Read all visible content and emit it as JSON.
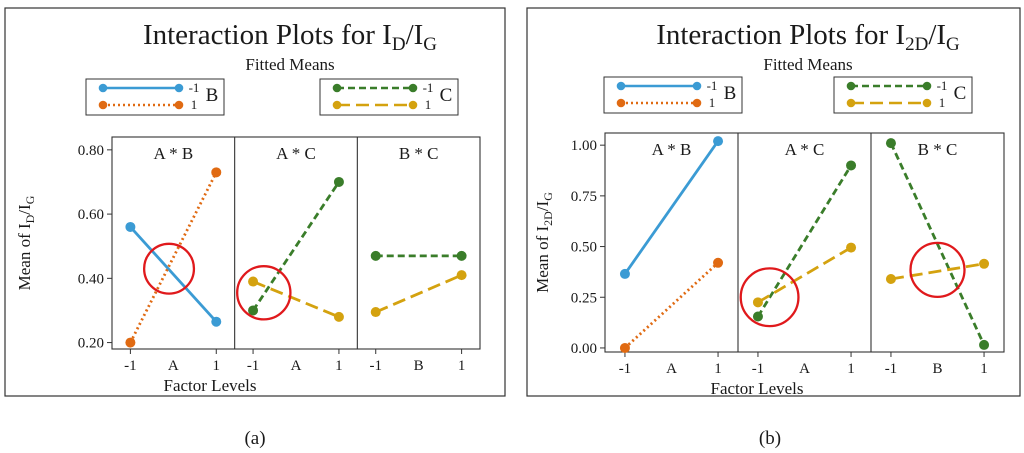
{
  "colors": {
    "blue": "#3b9bd4",
    "orange": "#e06a12",
    "green": "#3a7d2a",
    "gold": "#d4a20f",
    "circle": "#e0191c",
    "frame": "#333333"
  },
  "panel_labels": [
    "(a)",
    "(b)"
  ],
  "chart_data": [
    {
      "type": "line",
      "title_main": "Interaction Plots for I",
      "title_sub1": "D",
      "title_sep": "/I",
      "title_sub2": "G",
      "subtitle": "Fitted Means",
      "legend_left": {
        "levels": [
          "-1",
          "1"
        ],
        "factor": "B"
      },
      "legend_right": {
        "levels": [
          "-1",
          "1"
        ],
        "factor": "C"
      },
      "ylabel_main": "Mean of I",
      "ylabel_sub1": "D",
      "ylabel_sep": "/I",
      "ylabel_sub2": "G",
      "xlabel": "Factor Levels",
      "ylim": [
        0.18,
        0.84
      ],
      "yticks": [
        0.2,
        0.4,
        0.6,
        0.8
      ],
      "ytick_labels": [
        "0.20",
        "0.40",
        "0.60",
        "0.80"
      ],
      "x": [
        -1,
        1
      ],
      "xtick_labels": [
        "-1",
        "1"
      ],
      "subplots": [
        {
          "title": "A * B",
          "factor": "A",
          "series": [
            {
              "name": "-1",
              "color": "blue",
              "dash": "solid",
              "values": [
                0.56,
                0.265
              ]
            },
            {
              "name": "1",
              "color": "orange",
              "dash": "dotted",
              "values": [
                0.2,
                0.73
              ]
            }
          ],
          "circle": {
            "x": -0.1,
            "y": 0.43,
            "r": 0.58
          }
        },
        {
          "title": "A * C",
          "factor": "A",
          "series": [
            {
              "name": "-1",
              "color": "green",
              "dash": "dashed",
              "values": [
                0.3,
                0.7
              ]
            },
            {
              "name": "1",
              "color": "gold",
              "dash": "longdash",
              "values": [
                0.39,
                0.28
              ]
            }
          ],
          "circle": {
            "x": -0.75,
            "y": 0.355,
            "r": 0.62
          }
        },
        {
          "title": "B * C",
          "factor": "B",
          "series": [
            {
              "name": "-1",
              "color": "green",
              "dash": "dashed",
              "values": [
                0.47,
                0.47
              ]
            },
            {
              "name": "1",
              "color": "gold",
              "dash": "longdash",
              "values": [
                0.295,
                0.41
              ]
            }
          ]
        }
      ]
    },
    {
      "type": "line",
      "title_main": "Interaction Plots for I",
      "title_sub1": "2D",
      "title_sep": "/I",
      "title_sub2": "G",
      "subtitle": "Fitted Means",
      "legend_left": {
        "levels": [
          "-1",
          "1"
        ],
        "factor": "B"
      },
      "legend_right": {
        "levels": [
          "-1",
          "1"
        ],
        "factor": "C"
      },
      "ylabel_main": "Mean of I",
      "ylabel_sub1": "2D",
      "ylabel_sep": "/I",
      "ylabel_sub2": "G",
      "xlabel": "Factor Levels",
      "ylim": [
        -0.02,
        1.06
      ],
      "yticks": [
        0.0,
        0.25,
        0.5,
        0.75,
        1.0
      ],
      "ytick_labels": [
        "0.00",
        "0.25",
        "0.50",
        "0.75",
        "1.00"
      ],
      "x": [
        -1,
        1
      ],
      "xtick_labels": [
        "-1",
        "1"
      ],
      "subplots": [
        {
          "title": "A * B",
          "factor": "A",
          "series": [
            {
              "name": "-1",
              "color": "blue",
              "dash": "solid",
              "values": [
                0.365,
                1.02
              ]
            },
            {
              "name": "1",
              "color": "orange",
              "dash": "dotted",
              "values": [
                0.0,
                0.42
              ]
            }
          ]
        },
        {
          "title": "A * C",
          "factor": "A",
          "series": [
            {
              "name": "-1",
              "color": "green",
              "dash": "dashed",
              "values": [
                0.155,
                0.9
              ]
            },
            {
              "name": "1",
              "color": "gold",
              "dash": "longdash",
              "values": [
                0.225,
                0.495
              ]
            }
          ],
          "circle": {
            "x": -0.75,
            "y": 0.25,
            "r": 0.62
          }
        },
        {
          "title": "B * C",
          "factor": "B",
          "series": [
            {
              "name": "-1",
              "color": "green",
              "dash": "dashed",
              "values": [
                1.01,
                0.015
              ]
            },
            {
              "name": "1",
              "color": "gold",
              "dash": "longdash",
              "values": [
                0.34,
                0.415
              ]
            }
          ],
          "circle": {
            "x": 0.0,
            "y": 0.385,
            "r": 0.58
          }
        }
      ]
    }
  ]
}
